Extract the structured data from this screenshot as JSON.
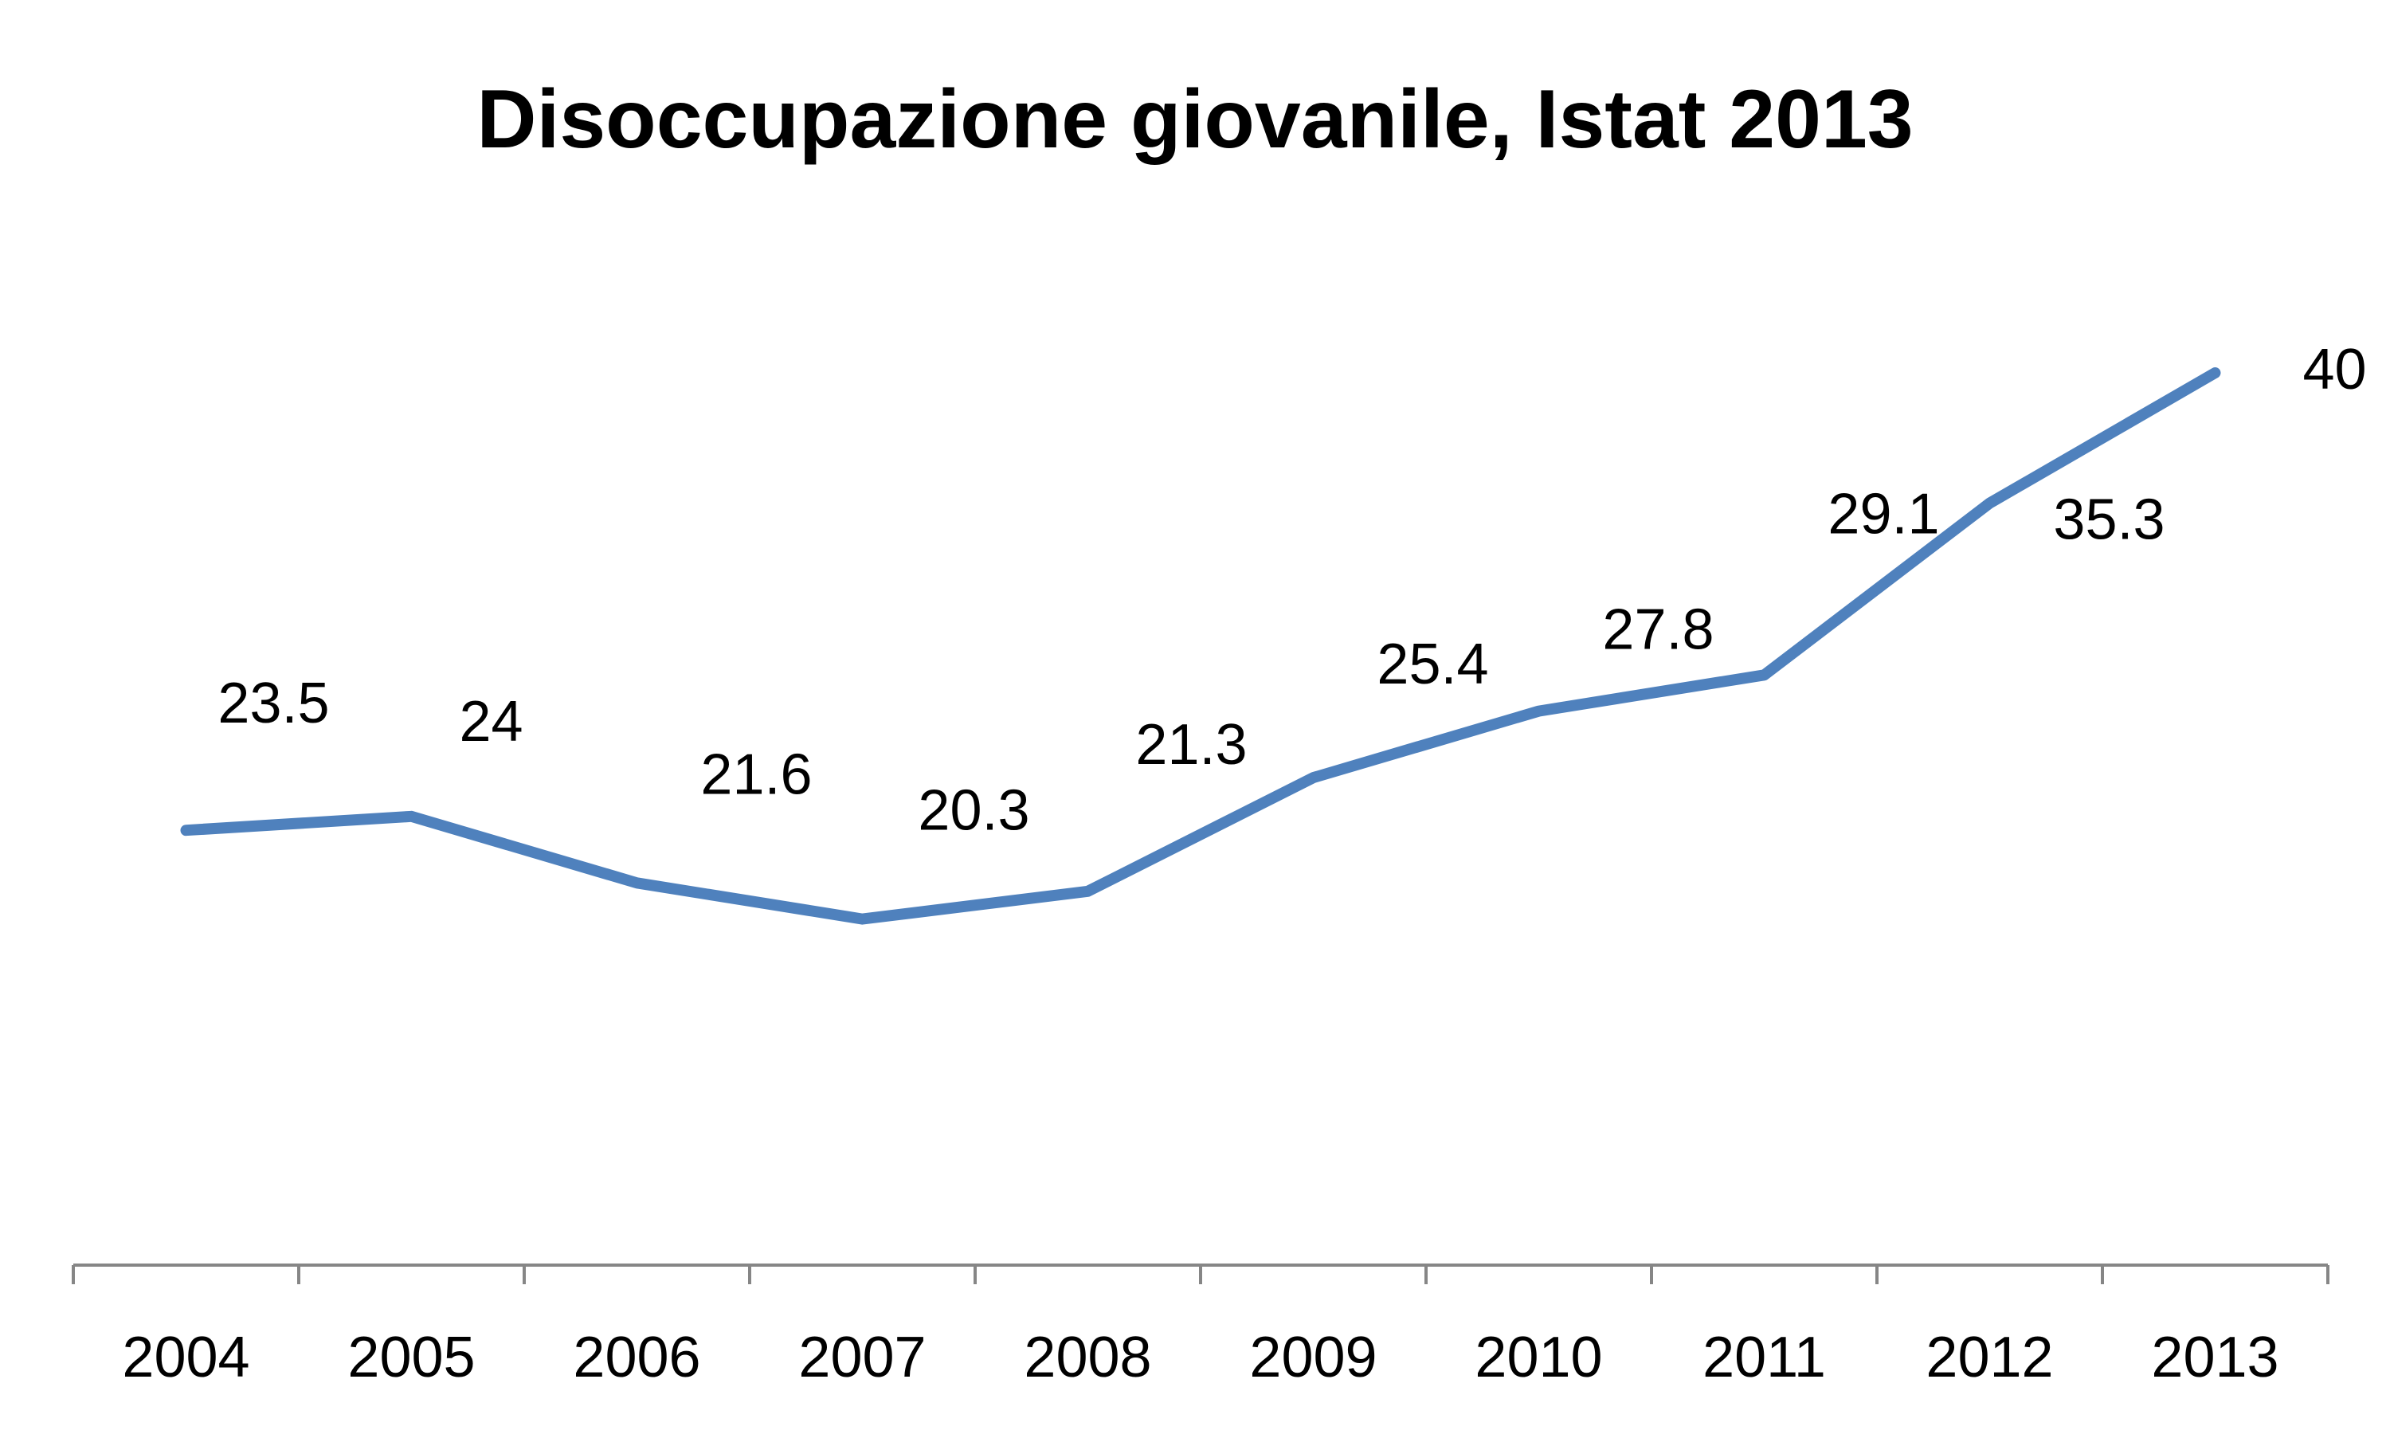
{
  "chart_data": {
    "type": "line",
    "title": "Disoccupazione giovanile, Istat 2013",
    "xlabel": "",
    "ylabel": "",
    "categories": [
      "2004",
      "2005",
      "2006",
      "2007",
      "2008",
      "2009",
      "2010",
      "2011",
      "2012",
      "2013"
    ],
    "series": [
      {
        "values": [
          23.5,
          24,
          21.6,
          20.3,
          21.3,
          25.4,
          27.8,
          29.1,
          35.3,
          40
        ],
        "data_labels": [
          "23.5",
          "24",
          "21.6",
          "20.3",
          "21.3",
          "25.4",
          "27.8",
          "29.1",
          "35.3",
          "40"
        ],
        "color": "#4F81BD"
      }
    ],
    "ylim": [
      0,
      45
    ],
    "y_axis_visible": false,
    "grid": false,
    "legend": "none"
  }
}
